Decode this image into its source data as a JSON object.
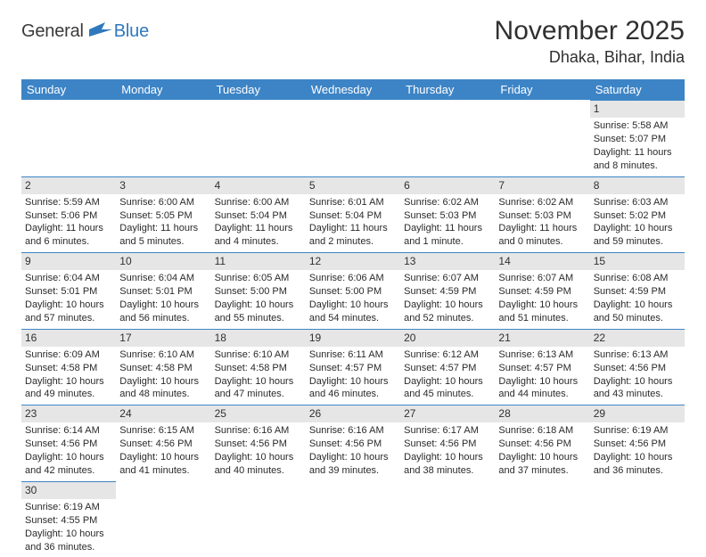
{
  "logo": {
    "part1": "General",
    "part2": "Blue"
  },
  "title": "November 2025",
  "location": "Dhaka, Bihar, India",
  "colors": {
    "header_bg": "#3d84c6",
    "header_fg": "#ffffff",
    "daynum_bg": "#e6e6e6",
    "cell_border": "#3d84c6",
    "text": "#2a2a2a",
    "logo_accent": "#2f78bd"
  },
  "day_headers": [
    "Sunday",
    "Monday",
    "Tuesday",
    "Wednesday",
    "Thursday",
    "Friday",
    "Saturday"
  ],
  "weeks": [
    [
      {
        "n": "",
        "sunrise": "",
        "sunset": "",
        "daylight": ""
      },
      {
        "n": "",
        "sunrise": "",
        "sunset": "",
        "daylight": ""
      },
      {
        "n": "",
        "sunrise": "",
        "sunset": "",
        "daylight": ""
      },
      {
        "n": "",
        "sunrise": "",
        "sunset": "",
        "daylight": ""
      },
      {
        "n": "",
        "sunrise": "",
        "sunset": "",
        "daylight": ""
      },
      {
        "n": "",
        "sunrise": "",
        "sunset": "",
        "daylight": ""
      },
      {
        "n": "1",
        "sunrise": "Sunrise: 5:58 AM",
        "sunset": "Sunset: 5:07 PM",
        "daylight": "Daylight: 11 hours and 8 minutes."
      }
    ],
    [
      {
        "n": "2",
        "sunrise": "Sunrise: 5:59 AM",
        "sunset": "Sunset: 5:06 PM",
        "daylight": "Daylight: 11 hours and 6 minutes."
      },
      {
        "n": "3",
        "sunrise": "Sunrise: 6:00 AM",
        "sunset": "Sunset: 5:05 PM",
        "daylight": "Daylight: 11 hours and 5 minutes."
      },
      {
        "n": "4",
        "sunrise": "Sunrise: 6:00 AM",
        "sunset": "Sunset: 5:04 PM",
        "daylight": "Daylight: 11 hours and 4 minutes."
      },
      {
        "n": "5",
        "sunrise": "Sunrise: 6:01 AM",
        "sunset": "Sunset: 5:04 PM",
        "daylight": "Daylight: 11 hours and 2 minutes."
      },
      {
        "n": "6",
        "sunrise": "Sunrise: 6:02 AM",
        "sunset": "Sunset: 5:03 PM",
        "daylight": "Daylight: 11 hours and 1 minute."
      },
      {
        "n": "7",
        "sunrise": "Sunrise: 6:02 AM",
        "sunset": "Sunset: 5:03 PM",
        "daylight": "Daylight: 11 hours and 0 minutes."
      },
      {
        "n": "8",
        "sunrise": "Sunrise: 6:03 AM",
        "sunset": "Sunset: 5:02 PM",
        "daylight": "Daylight: 10 hours and 59 minutes."
      }
    ],
    [
      {
        "n": "9",
        "sunrise": "Sunrise: 6:04 AM",
        "sunset": "Sunset: 5:01 PM",
        "daylight": "Daylight: 10 hours and 57 minutes."
      },
      {
        "n": "10",
        "sunrise": "Sunrise: 6:04 AM",
        "sunset": "Sunset: 5:01 PM",
        "daylight": "Daylight: 10 hours and 56 minutes."
      },
      {
        "n": "11",
        "sunrise": "Sunrise: 6:05 AM",
        "sunset": "Sunset: 5:00 PM",
        "daylight": "Daylight: 10 hours and 55 minutes."
      },
      {
        "n": "12",
        "sunrise": "Sunrise: 6:06 AM",
        "sunset": "Sunset: 5:00 PM",
        "daylight": "Daylight: 10 hours and 54 minutes."
      },
      {
        "n": "13",
        "sunrise": "Sunrise: 6:07 AM",
        "sunset": "Sunset: 4:59 PM",
        "daylight": "Daylight: 10 hours and 52 minutes."
      },
      {
        "n": "14",
        "sunrise": "Sunrise: 6:07 AM",
        "sunset": "Sunset: 4:59 PM",
        "daylight": "Daylight: 10 hours and 51 minutes."
      },
      {
        "n": "15",
        "sunrise": "Sunrise: 6:08 AM",
        "sunset": "Sunset: 4:59 PM",
        "daylight": "Daylight: 10 hours and 50 minutes."
      }
    ],
    [
      {
        "n": "16",
        "sunrise": "Sunrise: 6:09 AM",
        "sunset": "Sunset: 4:58 PM",
        "daylight": "Daylight: 10 hours and 49 minutes."
      },
      {
        "n": "17",
        "sunrise": "Sunrise: 6:10 AM",
        "sunset": "Sunset: 4:58 PM",
        "daylight": "Daylight: 10 hours and 48 minutes."
      },
      {
        "n": "18",
        "sunrise": "Sunrise: 6:10 AM",
        "sunset": "Sunset: 4:58 PM",
        "daylight": "Daylight: 10 hours and 47 minutes."
      },
      {
        "n": "19",
        "sunrise": "Sunrise: 6:11 AM",
        "sunset": "Sunset: 4:57 PM",
        "daylight": "Daylight: 10 hours and 46 minutes."
      },
      {
        "n": "20",
        "sunrise": "Sunrise: 6:12 AM",
        "sunset": "Sunset: 4:57 PM",
        "daylight": "Daylight: 10 hours and 45 minutes."
      },
      {
        "n": "21",
        "sunrise": "Sunrise: 6:13 AM",
        "sunset": "Sunset: 4:57 PM",
        "daylight": "Daylight: 10 hours and 44 minutes."
      },
      {
        "n": "22",
        "sunrise": "Sunrise: 6:13 AM",
        "sunset": "Sunset: 4:56 PM",
        "daylight": "Daylight: 10 hours and 43 minutes."
      }
    ],
    [
      {
        "n": "23",
        "sunrise": "Sunrise: 6:14 AM",
        "sunset": "Sunset: 4:56 PM",
        "daylight": "Daylight: 10 hours and 42 minutes."
      },
      {
        "n": "24",
        "sunrise": "Sunrise: 6:15 AM",
        "sunset": "Sunset: 4:56 PM",
        "daylight": "Daylight: 10 hours and 41 minutes."
      },
      {
        "n": "25",
        "sunrise": "Sunrise: 6:16 AM",
        "sunset": "Sunset: 4:56 PM",
        "daylight": "Daylight: 10 hours and 40 minutes."
      },
      {
        "n": "26",
        "sunrise": "Sunrise: 6:16 AM",
        "sunset": "Sunset: 4:56 PM",
        "daylight": "Daylight: 10 hours and 39 minutes."
      },
      {
        "n": "27",
        "sunrise": "Sunrise: 6:17 AM",
        "sunset": "Sunset: 4:56 PM",
        "daylight": "Daylight: 10 hours and 38 minutes."
      },
      {
        "n": "28",
        "sunrise": "Sunrise: 6:18 AM",
        "sunset": "Sunset: 4:56 PM",
        "daylight": "Daylight: 10 hours and 37 minutes."
      },
      {
        "n": "29",
        "sunrise": "Sunrise: 6:19 AM",
        "sunset": "Sunset: 4:56 PM",
        "daylight": "Daylight: 10 hours and 36 minutes."
      }
    ],
    [
      {
        "n": "30",
        "sunrise": "Sunrise: 6:19 AM",
        "sunset": "Sunset: 4:55 PM",
        "daylight": "Daylight: 10 hours and 36 minutes."
      },
      {
        "n": "",
        "sunrise": "",
        "sunset": "",
        "daylight": ""
      },
      {
        "n": "",
        "sunrise": "",
        "sunset": "",
        "daylight": ""
      },
      {
        "n": "",
        "sunrise": "",
        "sunset": "",
        "daylight": ""
      },
      {
        "n": "",
        "sunrise": "",
        "sunset": "",
        "daylight": ""
      },
      {
        "n": "",
        "sunrise": "",
        "sunset": "",
        "daylight": ""
      },
      {
        "n": "",
        "sunrise": "",
        "sunset": "",
        "daylight": ""
      }
    ]
  ]
}
